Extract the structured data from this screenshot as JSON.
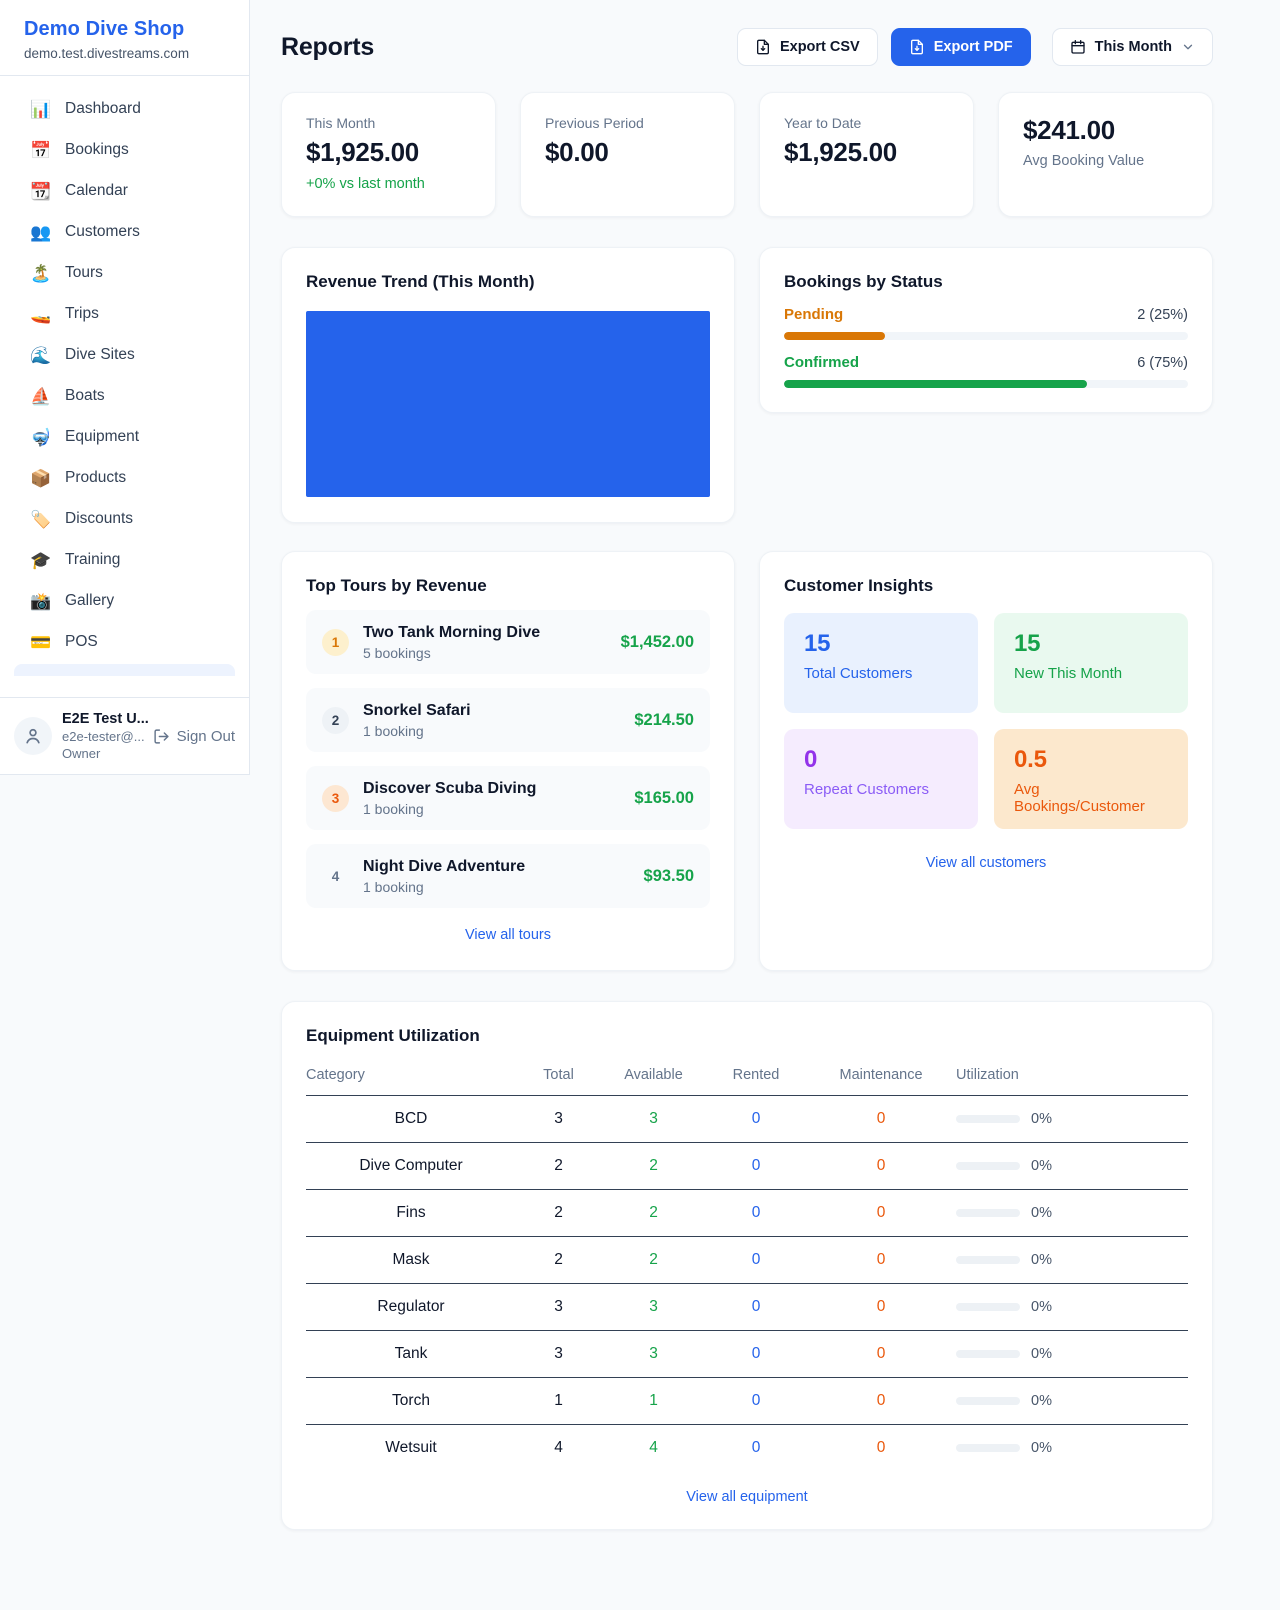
{
  "sidebar": {
    "shop_name": "Demo Dive Shop",
    "shop_domain": "demo.test.divestreams.com",
    "items": [
      {
        "icon": "📊",
        "label": "Dashboard"
      },
      {
        "icon": "📅",
        "label": "Bookings"
      },
      {
        "icon": "📆",
        "label": "Calendar"
      },
      {
        "icon": "👥",
        "label": "Customers"
      },
      {
        "icon": "🏝️",
        "label": "Tours"
      },
      {
        "icon": "🚤",
        "label": "Trips"
      },
      {
        "icon": "🌊",
        "label": "Dive Sites"
      },
      {
        "icon": "⛵",
        "label": "Boats"
      },
      {
        "icon": "🤿",
        "label": "Equipment"
      },
      {
        "icon": "📦",
        "label": "Products"
      },
      {
        "icon": "🏷️",
        "label": "Discounts"
      },
      {
        "icon": "🎓",
        "label": "Training"
      },
      {
        "icon": "📸",
        "label": "Gallery"
      },
      {
        "icon": "💳",
        "label": "POS"
      }
    ],
    "user": {
      "name": "E2E Test U...",
      "email": "e2e-tester@...",
      "role": "Owner",
      "sign_out_label": "Sign Out"
    }
  },
  "header": {
    "title": "Reports",
    "export_csv_label": "Export CSV",
    "export_pdf_label": "Export PDF",
    "period_label": "This Month"
  },
  "stats": [
    {
      "label": "This Month",
      "value": "$1,925.00",
      "delta": "+0% vs last month"
    },
    {
      "label": "Previous Period",
      "value": "$0.00"
    },
    {
      "label": "Year to Date",
      "value": "$1,925.00"
    },
    {
      "label": "Avg Booking Value",
      "value": "$241.00"
    }
  ],
  "revenue_trend": {
    "title": "Revenue Trend (This Month)",
    "bar_color": "#2563eb"
  },
  "bookings_by_status": {
    "title": "Bookings by Status",
    "rows": [
      {
        "label": "Pending",
        "value": "2 (25%)",
        "pct": 25,
        "color": "#d97706"
      },
      {
        "label": "Confirmed",
        "value": "6 (75%)",
        "pct": 75,
        "color": "#16a34a"
      }
    ]
  },
  "top_tours": {
    "title": "Top Tours by Revenue",
    "view_all_label": "View all tours",
    "rows": [
      {
        "rank": "1",
        "name": "Two Tank Morning Dive",
        "bookings": "5 bookings",
        "revenue": "$1,452.00"
      },
      {
        "rank": "2",
        "name": "Snorkel Safari",
        "bookings": "1 booking",
        "revenue": "$214.50"
      },
      {
        "rank": "3",
        "name": "Discover Scuba Diving",
        "bookings": "1 booking",
        "revenue": "$165.00"
      },
      {
        "rank": "4",
        "name": "Night Dive Adventure",
        "bookings": "1 booking",
        "revenue": "$93.50"
      }
    ]
  },
  "customer_insights": {
    "title": "Customer Insights",
    "view_all_label": "View all customers",
    "tiles": [
      {
        "value": "15",
        "label": "Total Customers",
        "color": "#2563eb"
      },
      {
        "value": "15",
        "label": "New This Month",
        "color": "#16a34a"
      },
      {
        "value": "0",
        "label": "Repeat Customers",
        "color": "#9333ea"
      },
      {
        "value": "0.5",
        "label": "Avg Bookings/Customer",
        "color": "#ea580c"
      }
    ]
  },
  "equipment": {
    "title": "Equipment Utilization",
    "view_all_label": "View all equipment",
    "columns": [
      "Category",
      "Total",
      "Available",
      "Rented",
      "Maintenance",
      "Utilization"
    ],
    "rows": [
      {
        "category": "BCD",
        "total": "3",
        "available": "3",
        "rented": "0",
        "maintenance": "0",
        "utilization": "0%",
        "pct": 0
      },
      {
        "category": "Dive Computer",
        "total": "2",
        "available": "2",
        "rented": "0",
        "maintenance": "0",
        "utilization": "0%",
        "pct": 0
      },
      {
        "category": "Fins",
        "total": "2",
        "available": "2",
        "rented": "0",
        "maintenance": "0",
        "utilization": "0%",
        "pct": 0
      },
      {
        "category": "Mask",
        "total": "2",
        "available": "2",
        "rented": "0",
        "maintenance": "0",
        "utilization": "0%",
        "pct": 0
      },
      {
        "category": "Regulator",
        "total": "3",
        "available": "3",
        "rented": "0",
        "maintenance": "0",
        "utilization": "0%",
        "pct": 0
      },
      {
        "category": "Tank",
        "total": "3",
        "available": "3",
        "rented": "0",
        "maintenance": "0",
        "utilization": "0%",
        "pct": 0
      },
      {
        "category": "Torch",
        "total": "1",
        "available": "1",
        "rented": "0",
        "maintenance": "0",
        "utilization": "0%",
        "pct": 0
      },
      {
        "category": "Wetsuit",
        "total": "4",
        "available": "4",
        "rented": "0",
        "maintenance": "0",
        "utilization": "0%",
        "pct": 0
      }
    ]
  },
  "colors": {
    "accent_blue": "#2563eb",
    "positive_green": "#16a34a",
    "pending_amber": "#d97706",
    "maintenance_orange": "#ea580c",
    "repeat_purple": "#9333ea",
    "muted_text": "#64748b",
    "page_background": "#f8fafc"
  }
}
